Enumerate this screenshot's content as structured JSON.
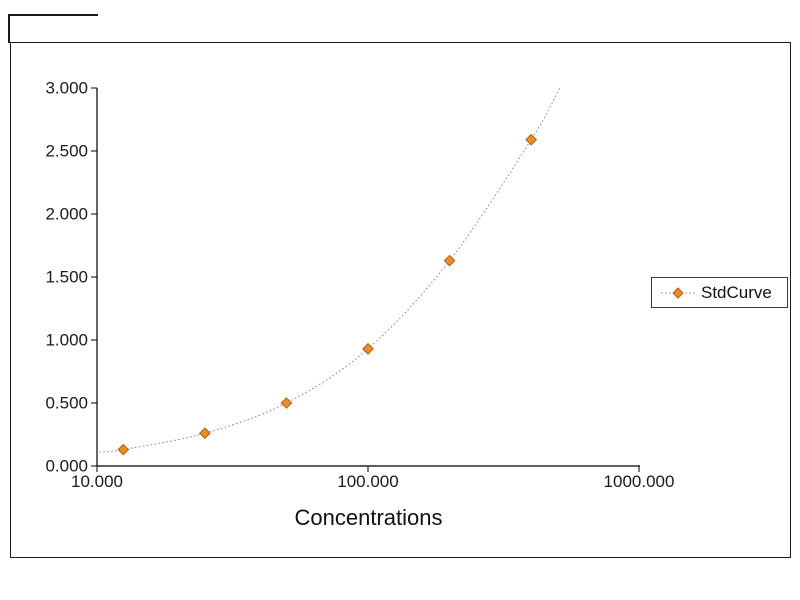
{
  "chart_data": {
    "type": "scatter",
    "title": "",
    "xlabel": "Concentrations",
    "ylabel": "",
    "x_scale": "log10",
    "x_range": [
      10,
      1000
    ],
    "y_range": [
      0,
      3
    ],
    "grid": "off",
    "legend_position": "right",
    "x_ticks": [
      {
        "label": "10.000",
        "value": 10
      },
      {
        "label": "100.000",
        "value": 100
      },
      {
        "label": "1000.000",
        "value": 1000
      }
    ],
    "y_ticks": [
      {
        "label": "0.000",
        "value": 0
      },
      {
        "label": "0.500",
        "value": 0.5
      },
      {
        "label": "1.000",
        "value": 1
      },
      {
        "label": "1.500",
        "value": 1.5
      },
      {
        "label": "2.000",
        "value": 2
      },
      {
        "label": "2.500",
        "value": 2.5
      },
      {
        "label": "3.000",
        "value": 3
      }
    ],
    "series": [
      {
        "name": "StdCurve",
        "marker": "diamond",
        "marker_color": "#ED8C25",
        "marker_edge_color": "#A9661A",
        "line_style": "dotted",
        "line_color": "#8a8a8a",
        "points": [
          {
            "concentration": 12.5,
            "od": 0.13
          },
          {
            "concentration": 25,
            "od": 0.26
          },
          {
            "concentration": 50,
            "od": 0.5
          },
          {
            "concentration": 100,
            "od": 0.93
          },
          {
            "concentration": 200,
            "od": 1.63
          },
          {
            "concentration": 400,
            "od": 2.59
          }
        ]
      }
    ],
    "curve_extension": {
      "start": {
        "concentration": 10.2,
        "od": 0.11
      },
      "end": {
        "concentration": 510,
        "od": 3.0
      }
    }
  },
  "colors": {
    "axis": "#000000",
    "text": "#1a1a1a",
    "frame": "#1a1a1a",
    "legend_border": "#3a3a3a",
    "background": "#ffffff"
  }
}
